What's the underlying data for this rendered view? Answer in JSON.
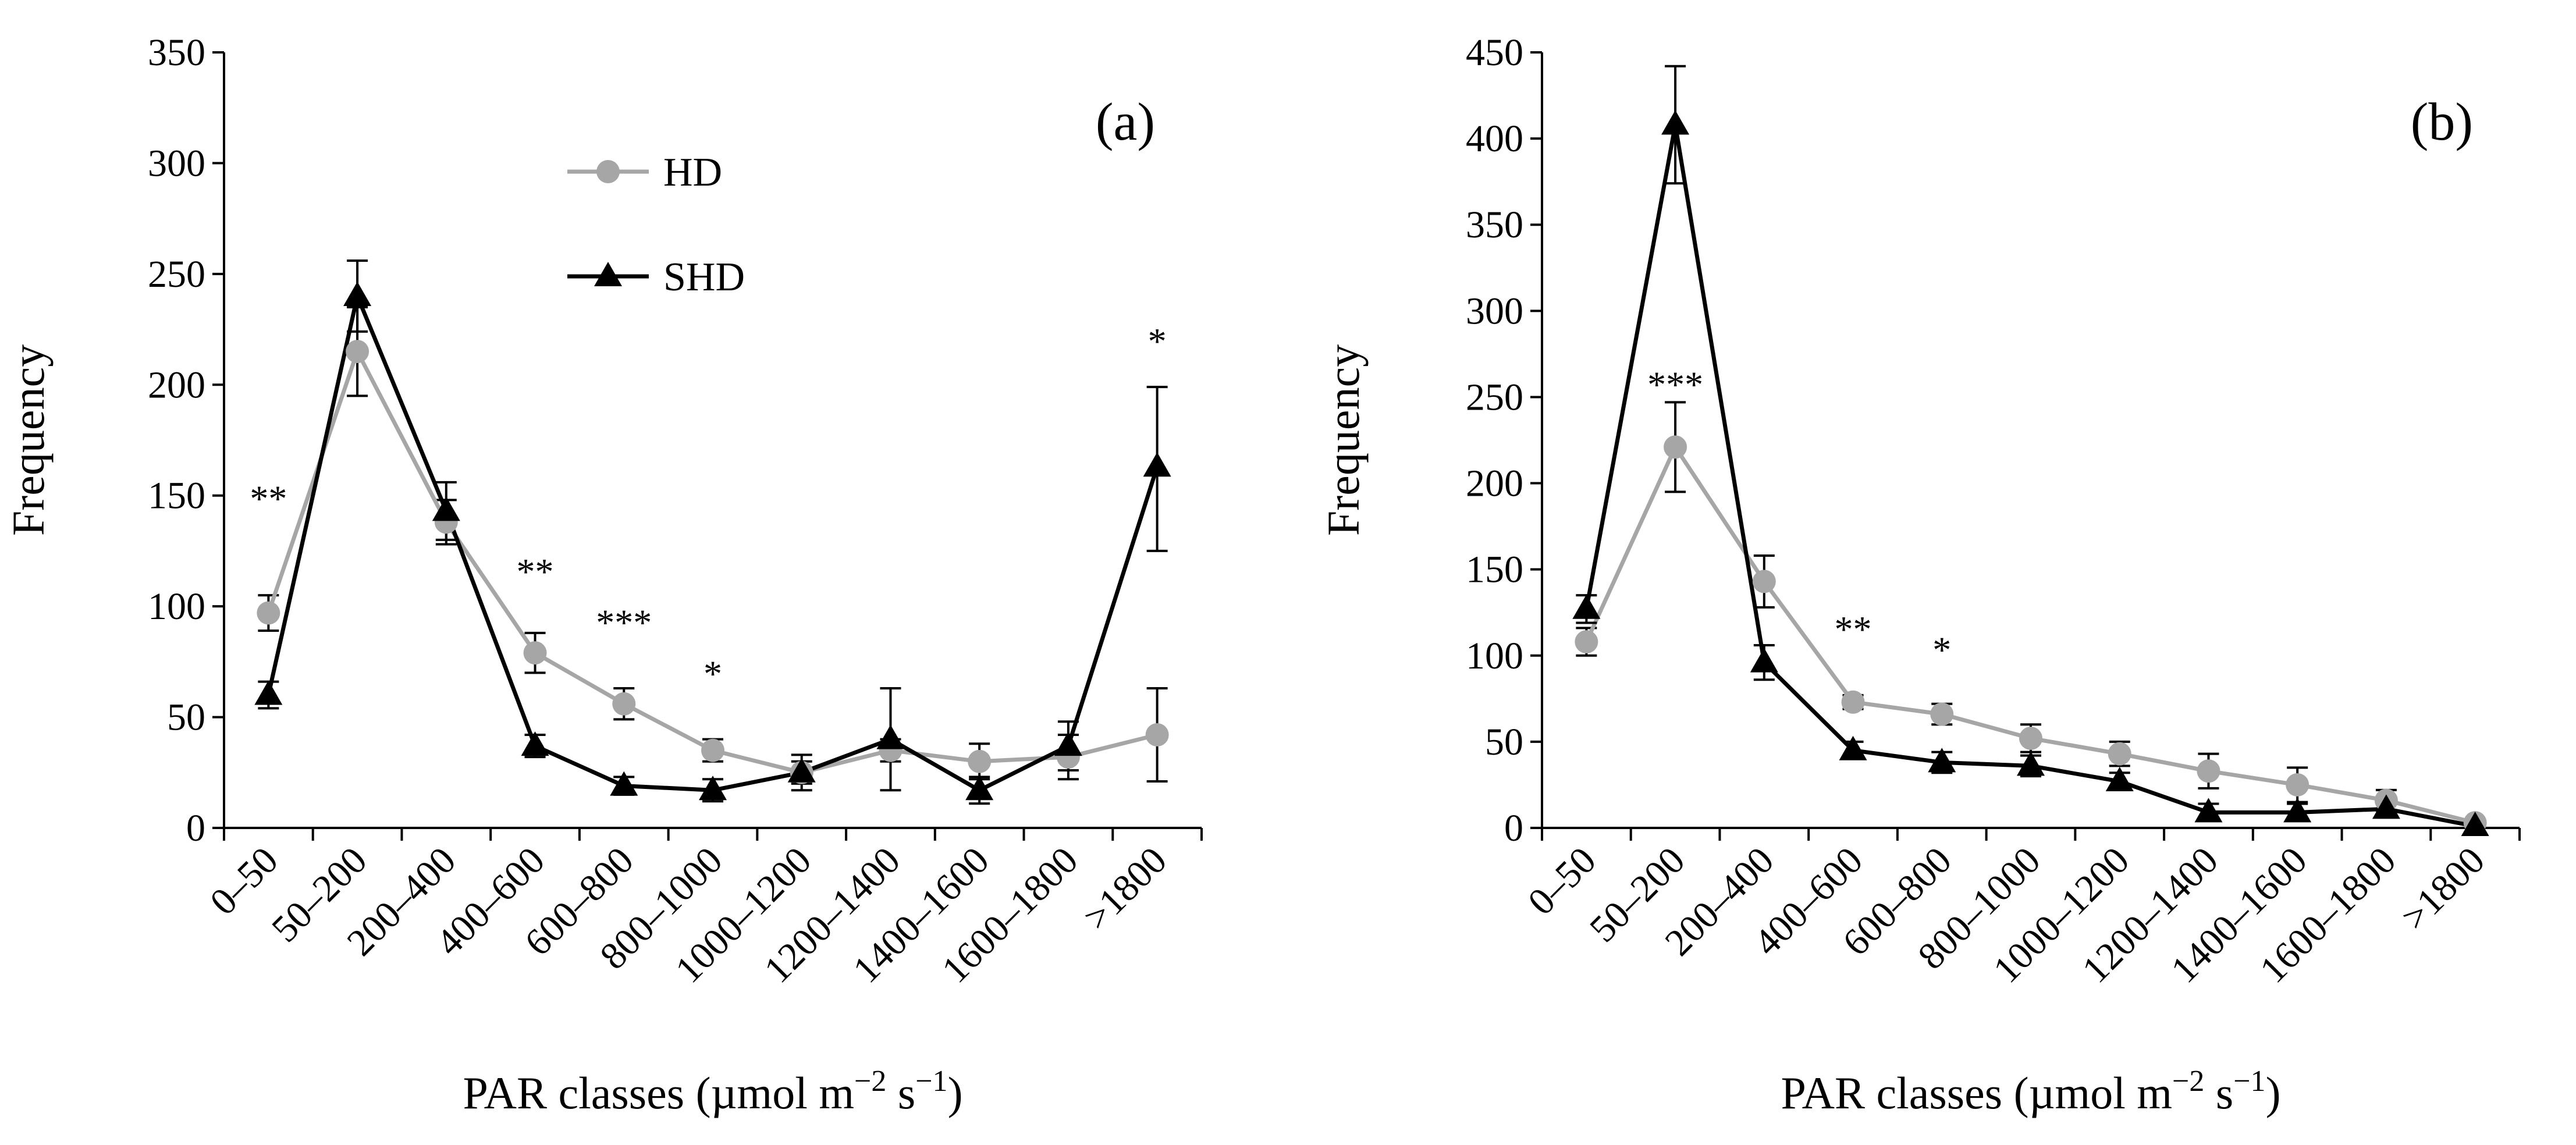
{
  "chart_data": [
    {
      "type": "line",
      "panel_label": "(a)",
      "xlabel": "PAR classes (µmol m",
      "xlabel_sup1": "−2",
      "xlabel_mid": " s",
      "xlabel_sup2": "−1",
      "xlabel_end": ")",
      "ylabel": "Frequency",
      "ylim": [
        0,
        350
      ],
      "yticks": [
        0,
        50,
        100,
        150,
        200,
        250,
        300,
        350
      ],
      "categories": [
        "0–50",
        "50–200",
        "200–400",
        "400–600",
        "600–800",
        "800–1000",
        "1000–1200",
        "1200–1400",
        "1400–1600",
        "1600–1800",
        ">1800"
      ],
      "legend": {
        "position": "top-center"
      },
      "series": [
        {
          "name": "HD",
          "color": "#a6a6a6",
          "marker": "circle",
          "values": [
            97,
            215,
            138,
            79,
            56,
            35,
            25,
            35,
            30,
            32,
            42
          ],
          "err_hi": [
            105,
            235,
            148,
            88,
            63,
            40,
            30,
            40,
            38,
            42,
            63
          ],
          "err_lo": [
            89,
            195,
            128,
            70,
            49,
            30,
            20,
            30,
            22,
            22,
            21
          ]
        },
        {
          "name": "SHD",
          "color": "#000000",
          "marker": "triangle",
          "values": [
            60,
            240,
            143,
            37,
            19,
            17,
            25,
            40,
            17,
            37,
            163
          ],
          "err_hi": [
            66,
            256,
            156,
            42,
            23,
            22,
            33,
            63,
            23,
            48,
            199
          ],
          "err_lo": [
            54,
            224,
            130,
            32,
            15,
            12,
            17,
            17,
            11,
            26,
            125
          ]
        }
      ],
      "annotations": [
        {
          "index": 0,
          "text": "**",
          "y": 143
        },
        {
          "index": 3,
          "text": "**",
          "y": 110
        },
        {
          "index": 4,
          "text": "***",
          "y": 87
        },
        {
          "index": 5,
          "text": "*",
          "y": 64
        },
        {
          "index": 10,
          "text": "*",
          "y": 214
        }
      ]
    },
    {
      "type": "line",
      "panel_label": "(b)",
      "xlabel": "PAR classes (µmol m",
      "xlabel_sup1": "−2",
      "xlabel_mid": " s",
      "xlabel_sup2": "−1",
      "xlabel_end": ")",
      "ylabel": "Frequency",
      "ylim": [
        0,
        450
      ],
      "yticks": [
        0,
        50,
        100,
        150,
        200,
        250,
        300,
        350,
        400,
        450
      ],
      "categories": [
        "0–50",
        "50–200",
        "200–400",
        "400–600",
        "600–800",
        "800–1000",
        "1000–1200",
        "1200–1400",
        "1400–1600",
        "1600–1800",
        ">1800"
      ],
      "series": [
        {
          "name": "HD",
          "color": "#a6a6a6",
          "marker": "circle",
          "values": [
            108,
            221,
            143,
            73,
            66,
            52,
            43,
            33,
            25,
            16,
            3
          ],
          "err_hi": [
            116,
            247,
            158,
            77,
            72,
            60,
            50,
            43,
            35,
            22,
            5
          ],
          "err_lo": [
            100,
            195,
            128,
            69,
            60,
            44,
            36,
            23,
            15,
            10,
            1
          ]
        },
        {
          "name": "SHD",
          "color": "#000000",
          "marker": "triangle",
          "values": [
            127,
            408,
            96,
            45,
            38,
            36,
            27,
            9,
            9,
            11,
            1
          ],
          "err_hi": [
            135,
            442,
            106,
            50,
            44,
            42,
            32,
            14,
            14,
            15,
            2
          ],
          "err_lo": [
            119,
            374,
            86,
            40,
            32,
            30,
            22,
            4,
            4,
            7,
            0
          ]
        }
      ],
      "annotations": [
        {
          "index": 1,
          "text": "***",
          "y": 250
        },
        {
          "index": 3,
          "text": "**",
          "y": 108
        },
        {
          "index": 4,
          "text": "*",
          "y": 96
        }
      ]
    }
  ]
}
